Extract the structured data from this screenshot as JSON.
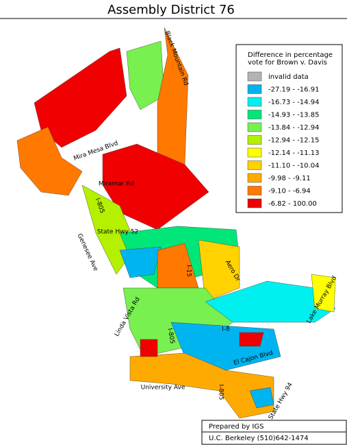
{
  "header": {
    "title": "Assembly District 76"
  },
  "legend": {
    "title_lines": [
      "Difference in percentage",
      "vote for Brown v. Davis"
    ],
    "items": [
      {
        "label": "invalid data",
        "color": "#b4b4b4"
      },
      {
        "label": "-27.19 - -16.91",
        "color": "#00b4f0"
      },
      {
        "label": "-16.73 - -14.94",
        "color": "#00f0f0"
      },
      {
        "label": "-14.93 - -13.85",
        "color": "#00e678"
      },
      {
        "label": "-13.84 - -12.94",
        "color": "#78f050"
      },
      {
        "label": "-12.94 - -12.15",
        "color": "#b4f000"
      },
      {
        "label": "-12.14 - -11.13",
        "color": "#ffff00"
      },
      {
        "label": "-11.10 - -10.04",
        "color": "#ffd200"
      },
      {
        "label": "-9.98 - -9.11",
        "color": "#ffaa00"
      },
      {
        "label": "-9.10 - -6.94",
        "color": "#ff7800"
      },
      {
        "label": "-6.82 - 100.00",
        "color": "#f00000"
      }
    ]
  },
  "roads": [
    "Black Mountain Rd",
    "Mira Mesa Blvd",
    "Miramar Rd",
    "I-805",
    "State Hwy 52",
    "Genesee Ave",
    "I-15",
    "Aero Dr",
    "Linda Vista Rd",
    "I-805",
    "I-8",
    "El Cajon Blvd",
    "Lake Murray Blvd",
    "University Ave",
    "I-805",
    "State Hwy 94"
  ],
  "footer": {
    "prepared": "Prepared by IGS",
    "contact": "U.C. Berkeley (510)642-1474"
  }
}
